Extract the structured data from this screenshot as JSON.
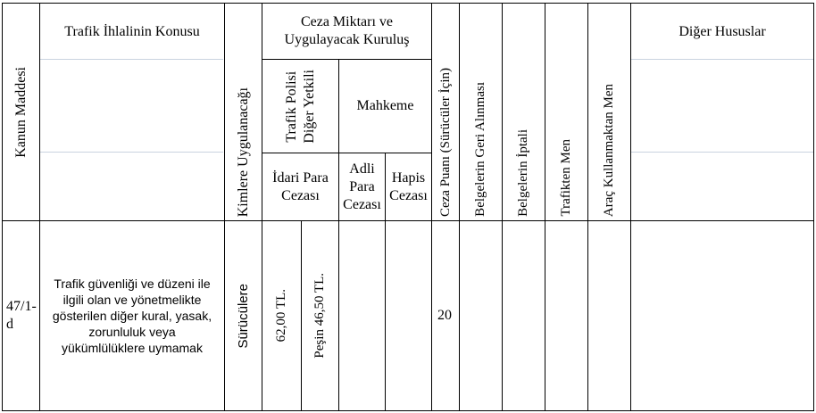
{
  "header": {
    "kanun_maddesi": "Kanun Maddesi",
    "konu": "Trafik İhlalinin Konusu",
    "kimlere": "Kimlere Uygulanacağı",
    "ceza_miktari_line1": "Ceza Miktarı ve",
    "ceza_miktari_line2": "Uygulayacak Kuruluş",
    "trafik_polisi_line1": "Trafik Polisi",
    "trafik_polisi_line2": "Diğer Yetkili",
    "mahkeme": "Mahkeme",
    "idari_line1": "İdari Para",
    "idari_line2": "Cezası",
    "adli_line1": "Adli",
    "adli_line2": "Para",
    "adli_line3": "Cezası",
    "hapis_line1": "Hapis",
    "hapis_line2": "Cezası",
    "ceza_puani": "Ceza Puanı (Sürücüler İçin)",
    "geri_alinmasi": "Belgelerin Geri Alınması",
    "iptali": "Belgelerin İptali",
    "trafikten_men": "Trafikten Men",
    "arac_men": "Araç Kullanmaktan Men",
    "diger": "Diğer Hususlar"
  },
  "row": {
    "madde_line1": "47/1-",
    "madde_line2": "d",
    "konu": "Trafik güvenliği ve düzeni ile ilgili olan ve yönetmelikte gösterilen diğer kural, yasak, zorunluluk veya yükümlülüklere uymamak",
    "kimlere": "Sürücülere",
    "idari_ceza": "62,00 TL.",
    "pesin": "Peşin 46,50 TL.",
    "adli": "",
    "hapis": "",
    "ceza_puani": "20",
    "geri_alinmasi": "",
    "iptali": "",
    "trafikten_men": "",
    "arac_men": "",
    "diger": ""
  }
}
